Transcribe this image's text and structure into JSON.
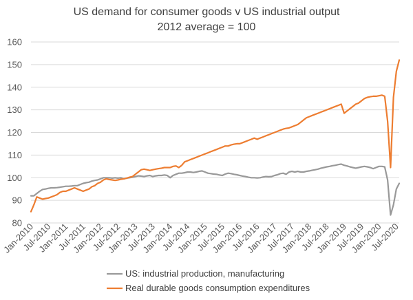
{
  "chart_data": {
    "type": "line",
    "title": "US demand for consumer goods v US industrial output",
    "subtitle": "2012 average = 100",
    "xlabel": "",
    "ylabel": "",
    "ylim": [
      80,
      160
    ],
    "yticks": [
      80,
      90,
      100,
      110,
      120,
      130,
      140,
      150,
      160
    ],
    "xtick_labels": [
      "Jan-2010",
      "Jul-2010",
      "Jan-2011",
      "Jul-2011",
      "Jan-2012",
      "Jul-2012",
      "Jan-2013",
      "Jul-2013",
      "Jan-2014",
      "Jul-2014",
      "Jan-2015",
      "Jul-2015",
      "Jan-2016",
      "Jul-2016",
      "Jan-2017",
      "Jul-2017",
      "Jan-2018",
      "Jul-2018",
      "Jan-2019",
      "Jul-2019",
      "Jan-2020",
      "Jul-2020"
    ],
    "grid": "horizontal",
    "legend_position": "bottom",
    "x_start": "Jan-2010",
    "x_frequency": "monthly",
    "series": [
      {
        "name": "US: industrial production, manufacturing",
        "color": "#999999",
        "values": [
          92.0,
          92.0,
          93.0,
          94.0,
          94.8,
          95.0,
          95.3,
          95.5,
          95.5,
          95.6,
          95.8,
          96.0,
          96.2,
          96.2,
          96.3,
          96.5,
          96.5,
          97.0,
          97.5,
          97.8,
          98.0,
          98.5,
          98.8,
          99.0,
          99.5,
          100.0,
          100.0,
          100.0,
          99.8,
          100.0,
          99.8,
          100.0,
          99.5,
          99.8,
          100.0,
          100.2,
          100.5,
          100.8,
          100.7,
          100.5,
          100.8,
          101.0,
          100.5,
          100.8,
          101.0,
          101.0,
          101.2,
          101.0,
          100.0,
          101.0,
          101.5,
          102.0,
          102.0,
          102.2,
          102.5,
          102.5,
          102.3,
          102.5,
          102.8,
          103.0,
          102.5,
          102.0,
          101.8,
          101.6,
          101.5,
          101.2,
          101.0,
          101.6,
          102.0,
          101.8,
          101.5,
          101.3,
          101.0,
          100.7,
          100.5,
          100.2,
          100.0,
          100.0,
          99.9,
          100.0,
          100.3,
          100.5,
          100.4,
          100.5,
          101.0,
          101.3,
          101.8,
          102.0,
          101.5,
          102.5,
          102.8,
          102.5,
          102.8,
          102.5,
          102.5,
          102.8,
          103.0,
          103.3,
          103.5,
          103.8,
          104.2,
          104.5,
          104.8,
          105.0,
          105.3,
          105.5,
          105.8,
          106.0,
          105.5,
          105.2,
          104.8,
          104.5,
          104.2,
          104.5,
          104.8,
          105.0,
          104.8,
          104.5,
          104.0,
          104.5,
          105.0,
          105.0,
          104.8,
          99.0,
          83.5,
          88.0,
          95.0,
          97.5
        ]
      },
      {
        "name": "Real durable goods consumption expenditures",
        "color": "#ED7D31",
        "values": [
          85.0,
          88.0,
          91.5,
          91.0,
          90.5,
          90.8,
          91.0,
          91.5,
          92.0,
          92.5,
          93.5,
          94.0,
          94.0,
          94.5,
          95.0,
          95.5,
          95.0,
          94.5,
          94.0,
          94.5,
          95.0,
          96.0,
          96.5,
          97.5,
          98.0,
          99.0,
          99.5,
          99.2,
          99.0,
          98.8,
          99.0,
          99.3,
          99.5,
          99.8,
          100.2,
          100.5,
          101.5,
          102.5,
          103.5,
          103.8,
          103.5,
          103.2,
          103.5,
          103.8,
          104.0,
          104.2,
          104.5,
          104.5,
          104.5,
          105.0,
          105.2,
          104.5,
          105.5,
          107.0,
          107.5,
          108.0,
          108.5,
          109.0,
          109.5,
          110.0,
          110.5,
          111.0,
          111.5,
          112.0,
          112.5,
          113.0,
          113.5,
          114.0,
          114.0,
          114.5,
          114.8,
          115.0,
          115.0,
          115.5,
          116.0,
          116.5,
          117.0,
          117.5,
          117.0,
          117.5,
          118.0,
          118.5,
          119.0,
          119.5,
          120.0,
          120.5,
          121.0,
          121.5,
          121.8,
          122.0,
          122.5,
          123.0,
          123.5,
          124.5,
          125.5,
          126.5,
          127.0,
          127.5,
          128.0,
          128.5,
          129.0,
          129.5,
          130.0,
          130.5,
          131.0,
          131.5,
          132.0,
          132.5,
          128.5,
          129.5,
          130.5,
          131.5,
          132.5,
          133.0,
          134.0,
          135.0,
          135.5,
          135.8,
          136.0,
          136.0,
          136.2,
          136.5,
          136.0,
          125.0,
          104.5,
          135.5,
          147.0,
          152.0
        ]
      }
    ]
  }
}
